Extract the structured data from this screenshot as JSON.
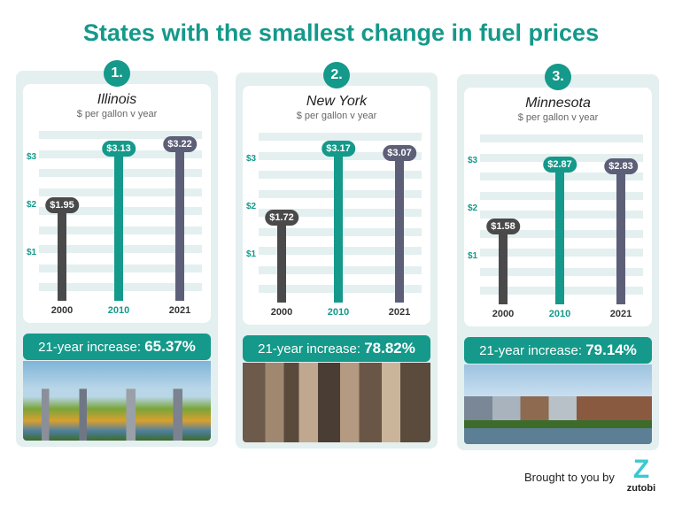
{
  "title": "States with the smallest change in fuel prices",
  "colors": {
    "teal": "#14998a",
    "dark": "#4a4a4a",
    "slate": "#5d5f78",
    "stripe": "#e4eff0"
  },
  "chart_data": [
    {
      "type": "bar",
      "rank": "1.",
      "title": "Illinois",
      "subtitle": "$ per gallon v year",
      "categories": [
        "2000",
        "2010",
        "2021"
      ],
      "values": [
        1.95,
        3.13,
        3.22
      ],
      "labels": [
        "$1.95",
        "$3.13",
        "$3.22"
      ],
      "yticks": [
        "$1",
        "$2",
        "$3"
      ],
      "ylim": [
        0,
        3.55
      ],
      "increase_label": "21-year increase:",
      "increase_value": "65.37%"
    },
    {
      "type": "bar",
      "rank": "2.",
      "title": "New York",
      "subtitle": "$ per gallon v year",
      "categories": [
        "2000",
        "2010",
        "2021"
      ],
      "values": [
        1.72,
        3.17,
        3.07
      ],
      "labels": [
        "$1.72",
        "$3.17",
        "$3.07"
      ],
      "yticks": [
        "$1",
        "$2",
        "$3"
      ],
      "ylim": [
        0,
        3.55
      ],
      "increase_label": "21-year increase:",
      "increase_value": "78.82%"
    },
    {
      "type": "bar",
      "rank": "3.",
      "title": "Minnesota",
      "subtitle": "$ per gallon v year",
      "categories": [
        "2000",
        "2010",
        "2021"
      ],
      "values": [
        1.58,
        2.87,
        2.83
      ],
      "labels": [
        "$1.58",
        "$2.87",
        "$2.83"
      ],
      "yticks": [
        "$1",
        "$2",
        "$3"
      ],
      "ylim": [
        0,
        3.55
      ],
      "increase_label": "21-year increase:",
      "increase_value": "79.14%"
    }
  ],
  "footer": {
    "credit": "Brought to you by",
    "logo_text": "zutobi",
    "logo_mark": "Z"
  }
}
